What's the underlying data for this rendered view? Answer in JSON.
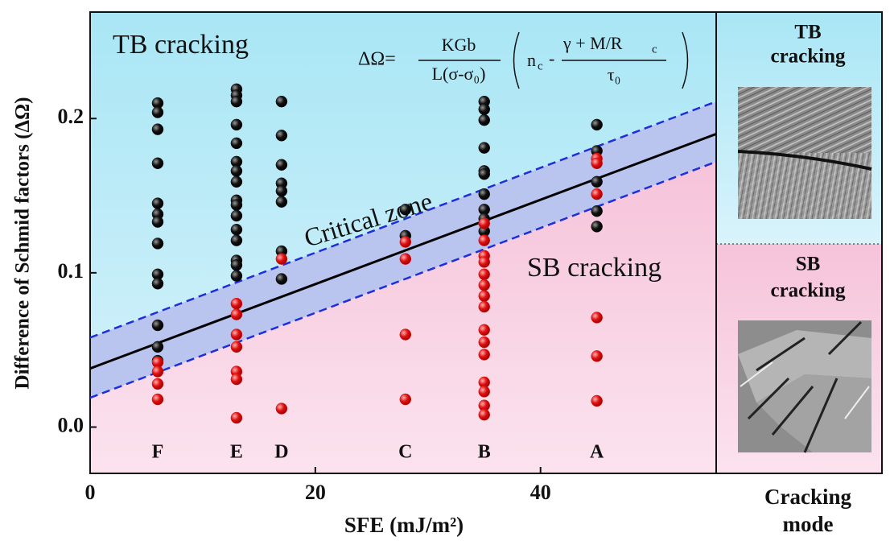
{
  "chart_data": {
    "type": "scatter",
    "xlabel": "SFE  (mJ/m²)",
    "ylabel": "Difference of Schmid factors (ΔΩ)",
    "xlim": [
      0,
      55.6
    ],
    "ylim": [
      -0.03,
      0.269
    ],
    "xticks": [
      0,
      20,
      40
    ],
    "yticks": [
      {
        "value": 0,
        "label": "0.0"
      },
      {
        "value": 0.1,
        "label": "0.1"
      },
      {
        "value": 0.2,
        "label": "0.2"
      }
    ],
    "series": [
      {
        "color": "#111111",
        "x": [
          6,
          6,
          6,
          6,
          6,
          6,
          6,
          6,
          6,
          6,
          6,
          6,
          6,
          13,
          13,
          13,
          13,
          13,
          13,
          13,
          13,
          13,
          13,
          13,
          13,
          13,
          13,
          13,
          13,
          17,
          17,
          17,
          17,
          17,
          17,
          17,
          17,
          28,
          28,
          35,
          35,
          35,
          35,
          35,
          35,
          35,
          35,
          35,
          35,
          45,
          45,
          45,
          45,
          45
        ],
        "values": [
          0.21,
          0.204,
          0.193,
          0.171,
          0.145,
          0.138,
          0.133,
          0.119,
          0.099,
          0.093,
          0.066,
          0.052,
          0.043,
          0.219,
          0.215,
          0.211,
          0.196,
          0.184,
          0.172,
          0.166,
          0.159,
          0.147,
          0.144,
          0.137,
          0.128,
          0.121,
          0.108,
          0.105,
          0.098,
          0.211,
          0.189,
          0.17,
          0.158,
          0.153,
          0.146,
          0.114,
          0.096,
          0.141,
          0.124,
          0.211,
          0.206,
          0.199,
          0.181,
          0.166,
          0.164,
          0.151,
          0.141,
          0.135,
          0.127,
          0.196,
          0.179,
          0.159,
          0.14,
          0.13
        ]
      },
      {
        "color": "#e01010",
        "x": [
          6,
          6,
          6,
          6,
          13,
          13,
          13,
          13,
          13,
          13,
          13,
          17,
          17,
          28,
          28,
          28,
          28,
          35,
          35,
          35,
          35,
          35,
          35,
          35,
          35,
          35,
          35,
          35,
          35,
          35,
          35,
          35,
          45,
          45,
          45,
          45,
          45,
          45
        ],
        "values": [
          0.042,
          0.036,
          0.028,
          0.018,
          0.08,
          0.073,
          0.06,
          0.052,
          0.036,
          0.031,
          0.006,
          0.109,
          0.012,
          0.12,
          0.109,
          0.06,
          0.018,
          0.132,
          0.121,
          0.111,
          0.107,
          0.099,
          0.092,
          0.085,
          0.078,
          0.063,
          0.055,
          0.047,
          0.029,
          0.023,
          0.014,
          0.008,
          0.174,
          0.171,
          0.151,
          0.071,
          0.046,
          0.017
        ]
      }
    ],
    "lines": [
      {
        "style": "solid",
        "color": "#000000",
        "x": [
          0,
          55.6
        ],
        "y": [
          0.038,
          0.19
        ]
      },
      {
        "style": "dashed",
        "color": "#1f2fd8",
        "x": [
          0,
          55.6
        ],
        "y": [
          0.058,
          0.211
        ]
      },
      {
        "style": "dashed",
        "color": "#1f2fd8",
        "x": [
          0,
          55.6
        ],
        "y": [
          0.019,
          0.172
        ]
      }
    ],
    "groups": {
      "labels": [
        "F",
        "E",
        "D",
        "C",
        "B",
        "A"
      ],
      "x": [
        6,
        13,
        17,
        28,
        35,
        45
      ]
    },
    "annotations": {
      "tb": "TB cracking",
      "sb": "SB cracking",
      "zone": "Critical zone"
    },
    "equation": {
      "lhs": "ΔΩ=",
      "num1": "KGb",
      "den1": "L(σ-σ₀)",
      "n": "n",
      "n_sub": "c",
      "minus": "-",
      "num2": "γ + M/R",
      "num2_sub": "c",
      "den2": "τ₀"
    },
    "panel": {
      "tb1": "TB",
      "tb2": "cracking",
      "sb1": "SB",
      "sb2": "cracking",
      "label1": "Cracking",
      "label2": "mode"
    }
  }
}
